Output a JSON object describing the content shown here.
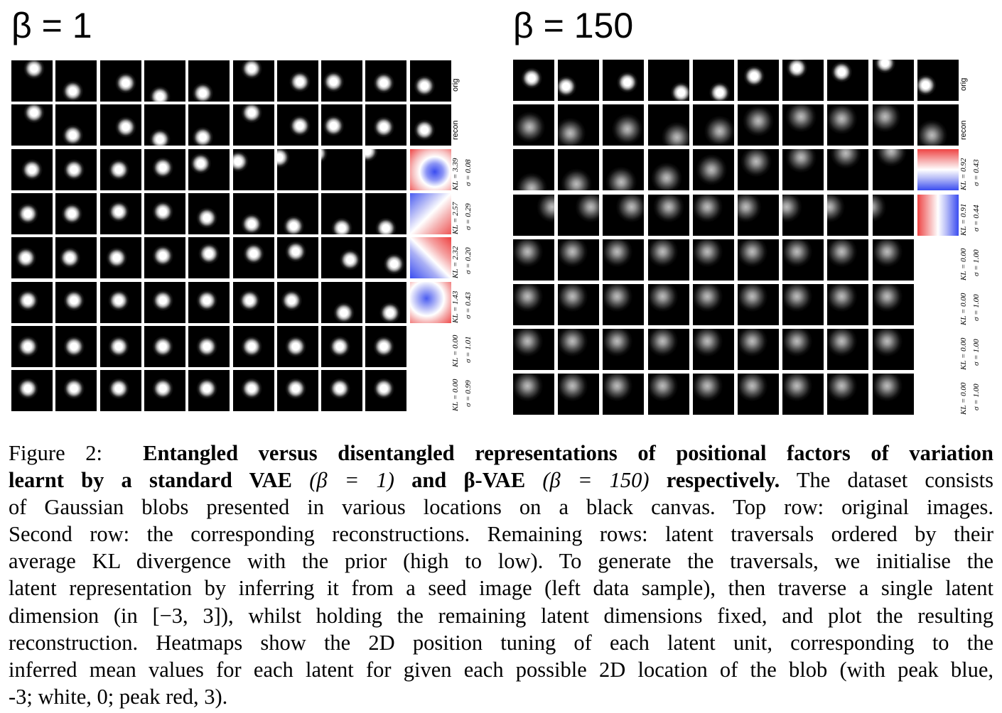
{
  "panels": [
    {
      "title": "β = 1",
      "row_labels": [
        "orig",
        "recon"
      ],
      "kl_labels": [
        {
          "kl": "KL = 3.39",
          "sigma": "σ = 0.08",
          "has_heatmap": true
        },
        {
          "kl": "KL = 2.57",
          "sigma": "σ = 0.29",
          "has_heatmap": true
        },
        {
          "kl": "KL = 2.32",
          "sigma": "σ = 0.20",
          "has_heatmap": true
        },
        {
          "kl": "KL = 1.43",
          "sigma": "σ = 0.43",
          "has_heatmap": true
        },
        {
          "kl": "KL = 0.00",
          "sigma": "σ = 1.01",
          "has_heatmap": false
        },
        {
          "kl": "KL = 0.00",
          "sigma": "σ = 0.99",
          "has_heatmap": false
        }
      ]
    },
    {
      "title": "β = 150",
      "row_labels": [
        "orig",
        "recon"
      ],
      "kl_labels": [
        {
          "kl": "KL = 0.92",
          "sigma": "σ = 0.43",
          "has_heatmap": true
        },
        {
          "kl": "KL = 0.91",
          "sigma": "σ = 0.44",
          "has_heatmap": true
        },
        {
          "kl": "KL = 0.00",
          "sigma": "σ = 1.00",
          "has_heatmap": false
        },
        {
          "kl": "KL = 0.00",
          "sigma": "σ = 1.00",
          "has_heatmap": false
        },
        {
          "kl": "KL = 0.00",
          "sigma": "σ = 1.00",
          "has_heatmap": false
        },
        {
          "kl": "KL = 0.00",
          "sigma": "σ = 1.00",
          "has_heatmap": false
        }
      ]
    }
  ],
  "caption": {
    "figure_label": "Figure 2:",
    "bold_part1": "Entangled versus disentangled representations of positional factors of variation",
    "bold_part2": "learnt by a standard VAE",
    "math1": "(β = 1)",
    "bold_and": "and",
    "bold_bvae": "β-VAE",
    "math2": "(β = 150)",
    "bold_resp": "respectively.",
    "text1": "The dataset consists",
    "line3": "of Gaussian blobs presented in various locations on a black canvas.  Top row: original images.",
    "line4": "Second row: the corresponding reconstructions. Remaining rows: latent traversals ordered by their",
    "line5": "average KL divergence with the prior (high to low).  To generate the traversals, we initialise the",
    "line6": "latent representation by inferring it from a seed image (left data sample), then traverse a single latent",
    "line7": "dimension (in [−3, 3]), whilst holding the remaining latent dimensions fixed, and plot the resulting",
    "line8": "reconstruction.  Heatmaps show the 2D position tuning of each latent unit, corresponding to the",
    "line9": "inferred mean values for each latent for given each possible 2D location of the blob (with peak blue,",
    "line10": "-3; white, 0; peak red, 3)."
  }
}
